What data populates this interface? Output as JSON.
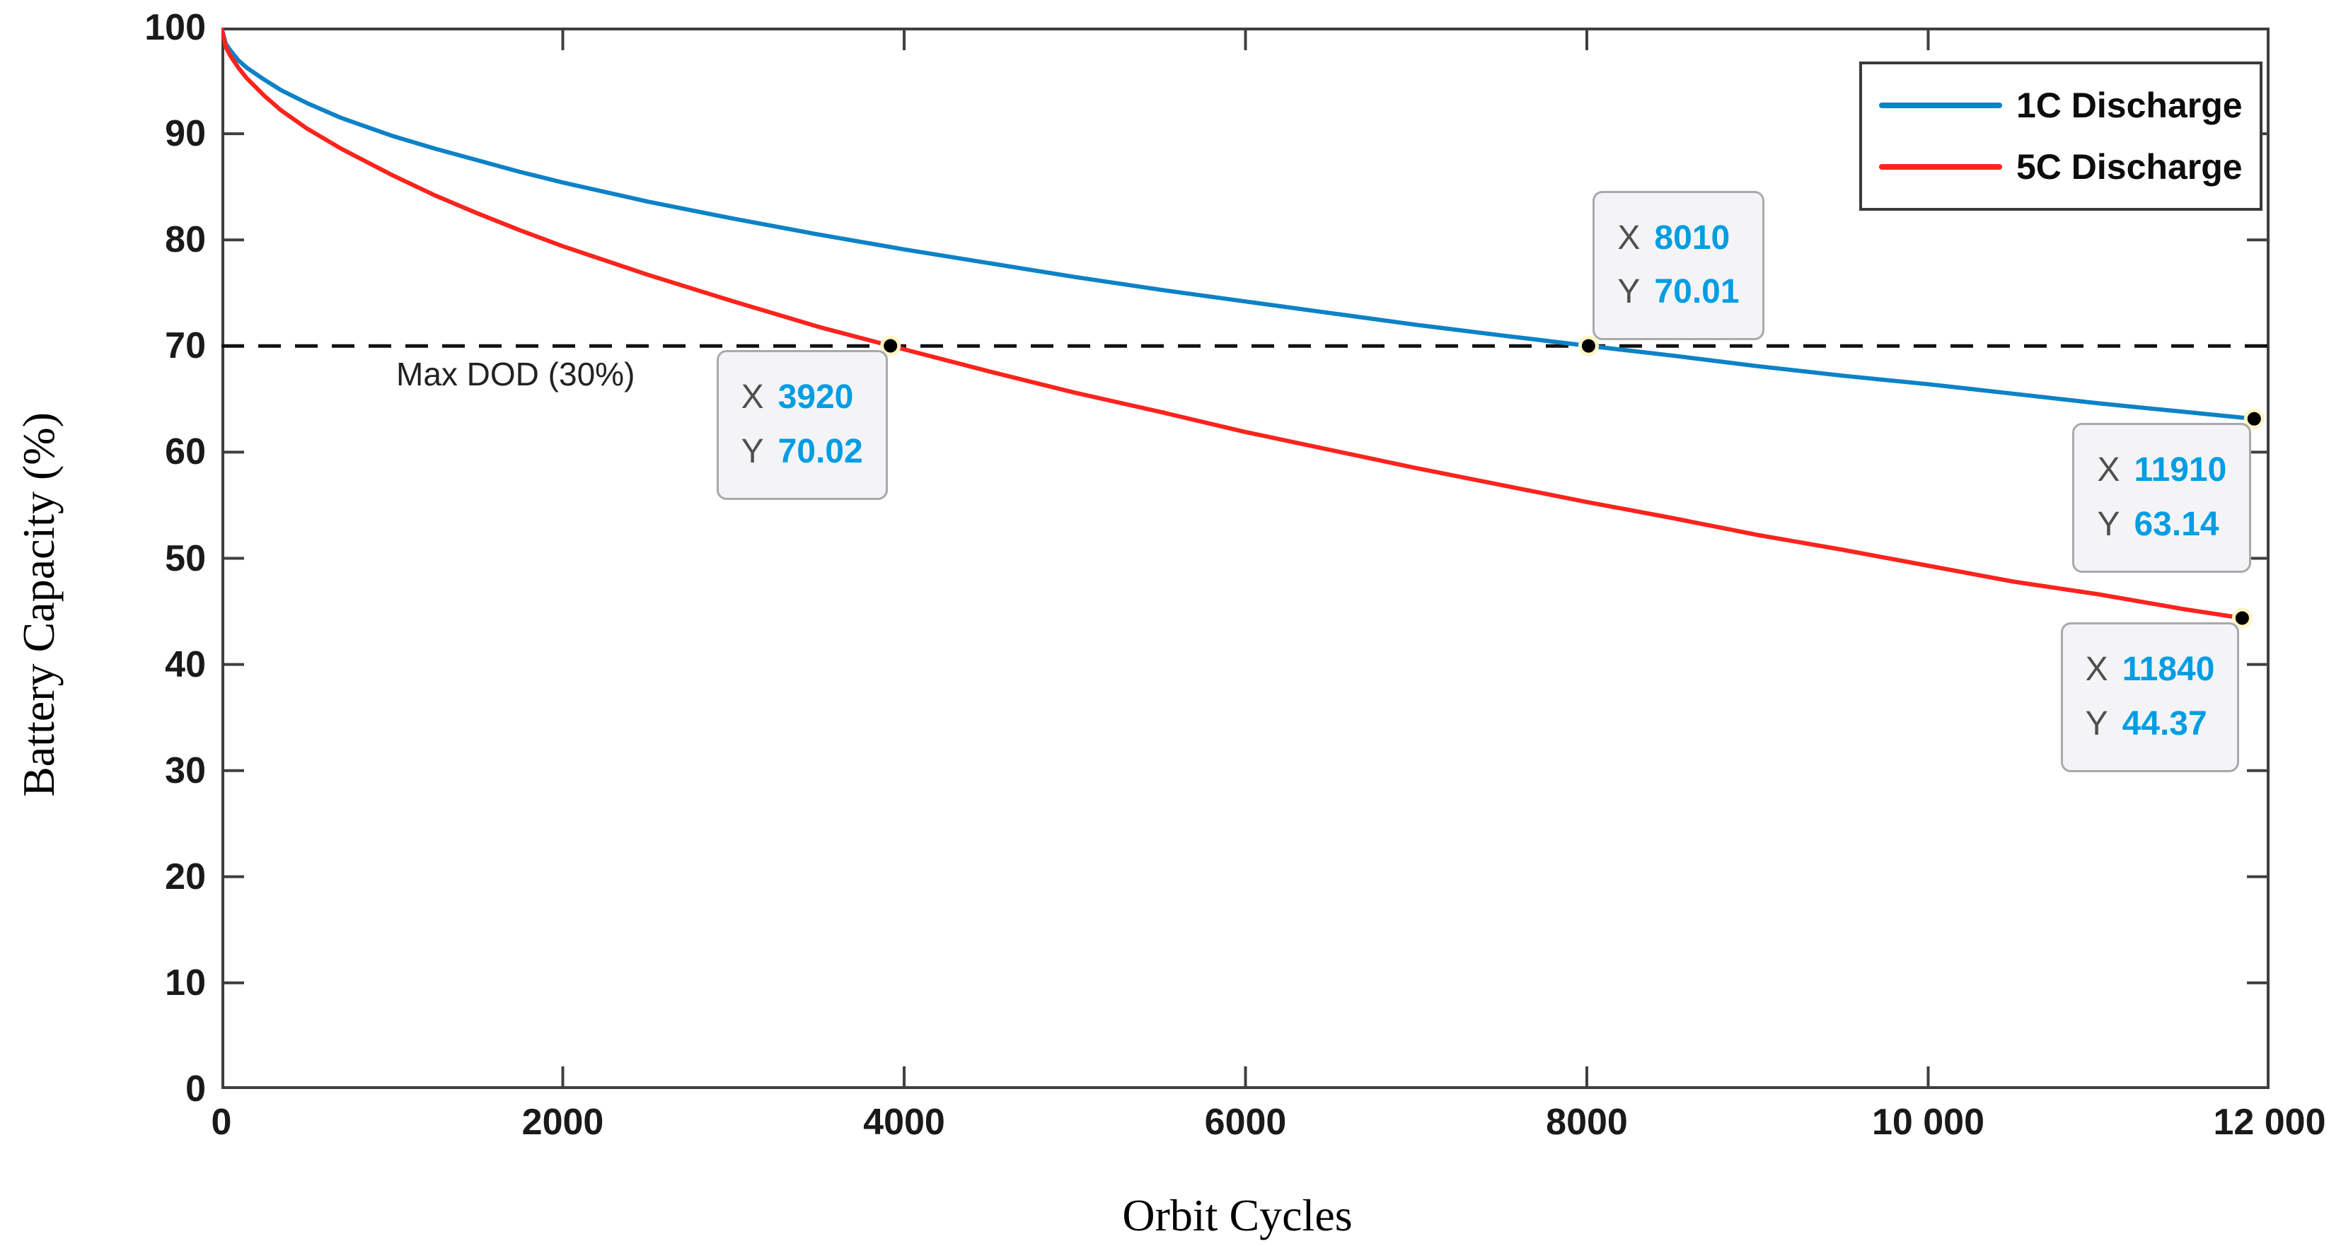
{
  "figure": {
    "background": "#ffffff",
    "axis_color": "#3f3f3f",
    "tick_label_color": "#1a1a1a"
  },
  "chart_data": {
    "type": "line",
    "title": "",
    "xlabel": "Orbit Cycles",
    "ylabel": "Battery Capacity (%)",
    "xlim": [
      0,
      12000
    ],
    "ylim": [
      0,
      100
    ],
    "grid": false,
    "x_ticks": {
      "values": [
        0,
        2000,
        4000,
        6000,
        8000,
        10000,
        12000
      ],
      "labels": [
        "0",
        "2000",
        "4000",
        "6000",
        "8000",
        "10 000",
        "12 000"
      ]
    },
    "y_ticks": {
      "values": [
        0,
        10,
        20,
        30,
        40,
        50,
        60,
        70,
        80,
        90,
        100
      ],
      "labels": [
        "0",
        "10",
        "20",
        "30",
        "40",
        "50",
        "60",
        "70",
        "80",
        "90",
        "100"
      ]
    },
    "legend": {
      "position": "top-right",
      "entries": [
        {
          "label": "1C Discharge",
          "color": "#0d82c6"
        },
        {
          "label": "5C Discharge",
          "color": "#fb241d"
        }
      ]
    },
    "series": [
      {
        "name": "1C Discharge",
        "color": "#0d82c6",
        "x": [
          0,
          25,
          50,
          100,
          150,
          250,
          350,
          500,
          700,
          1000,
          1250,
          1500,
          1750,
          2000,
          2500,
          3000,
          3500,
          4000,
          4500,
          5000,
          5500,
          6000,
          6500,
          7000,
          7500,
          8010,
          8500,
          9000,
          9500,
          10000,
          10500,
          11000,
          11500,
          11910
        ],
        "y": [
          100,
          98.5,
          97.9,
          96.9,
          96.2,
          95.1,
          94.1,
          92.9,
          91.5,
          89.8,
          88.6,
          87.5,
          86.4,
          85.4,
          83.6,
          82.0,
          80.5,
          79.1,
          77.8,
          76.5,
          75.3,
          74.2,
          73.1,
          72.0,
          71.0,
          70.01,
          69.1,
          68.1,
          67.2,
          66.4,
          65.5,
          64.6,
          63.8,
          63.14
        ]
      },
      {
        "name": "5C Discharge",
        "color": "#fb241d",
        "x": [
          0,
          25,
          50,
          100,
          150,
          250,
          350,
          500,
          700,
          1000,
          1250,
          1500,
          1750,
          2000,
          2500,
          3000,
          3500,
          3920,
          4500,
          5000,
          5500,
          6000,
          6500,
          7000,
          7500,
          8000,
          8500,
          9000,
          9500,
          10000,
          10500,
          11000,
          11500,
          11840
        ],
        "y": [
          100,
          98.2,
          97.4,
          96.2,
          95.2,
          93.6,
          92.2,
          90.5,
          88.6,
          86.1,
          84.2,
          82.5,
          80.9,
          79.4,
          76.7,
          74.2,
          71.8,
          70.02,
          67.6,
          65.6,
          63.8,
          61.9,
          60.2,
          58.5,
          56.9,
          55.3,
          53.8,
          52.2,
          50.8,
          49.3,
          47.8,
          46.6,
          45.2,
          44.37
        ]
      }
    ],
    "reference_line": {
      "y": 70,
      "label": "Max DOD (30%)",
      "style": "dashed",
      "color": "#111111"
    },
    "datatips": [
      {
        "series": "5C Discharge",
        "x": 3920,
        "y": 70.02,
        "x_text": "3920",
        "y_text": "70.02",
        "anchor": "top-right"
      },
      {
        "series": "1C Discharge",
        "x": 8010,
        "y": 70.01,
        "x_text": "8010",
        "y_text": "70.01",
        "anchor": "bottom-left"
      },
      {
        "series": "1C Discharge",
        "x": 11910,
        "y": 63.14,
        "x_text": "11910",
        "y_text": "63.14",
        "anchor": "top-right"
      },
      {
        "series": "5C Discharge",
        "x": 11840,
        "y": 44.37,
        "x_text": "11840",
        "y_text": "44.37",
        "anchor": "top-right"
      }
    ],
    "datatip_labels": {
      "x_prefix": "X",
      "y_prefix": "Y"
    },
    "datatip_colors": {
      "value": "#009de3",
      "prefix": "#4f4f4f",
      "background": "#f4f4f7",
      "border": "#a9a9ad"
    },
    "marker": {
      "fill": "#000000",
      "halo": "#fdf5c4"
    }
  }
}
